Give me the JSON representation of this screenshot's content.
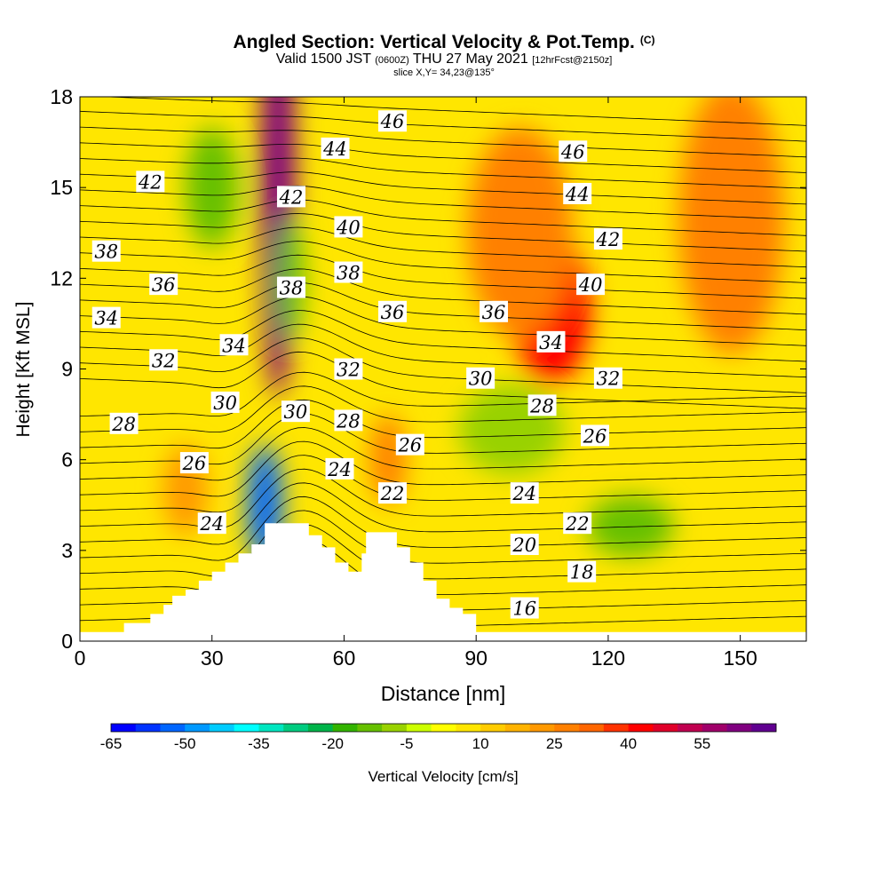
{
  "title": {
    "main": "Angled Section: Vertical Velocity & Pot.Temp.",
    "main_unit": "(C)",
    "valid_prefix": "Valid 1500 JST",
    "valid_utc": "(0600Z)",
    "valid_date": "THU 27 May 2021",
    "forecast": "[12hrFcst@2150z]",
    "slice": "slice X,Y= 34,23@135°"
  },
  "chart_data": {
    "type": "heatmap",
    "xlabel": "Distance [nm]",
    "ylabel": "Height [Kft MSL]",
    "xlim": [
      0,
      165
    ],
    "ylim": [
      0,
      18
    ],
    "xticks": [
      0,
      30,
      60,
      90,
      120,
      150
    ],
    "yticks": [
      0,
      3,
      6,
      9,
      12,
      15,
      18
    ],
    "colorbar": {
      "label": "Vertical Velocity [cm/s]",
      "tick_labels": [
        -65,
        -50,
        -35,
        -20,
        -5,
        10,
        25,
        40,
        55
      ],
      "colors": [
        "#0000ff",
        "#0033ff",
        "#0066ff",
        "#0099ff",
        "#00ccff",
        "#00ffff",
        "#00e6c0",
        "#00cc80",
        "#00b44a",
        "#33b400",
        "#66c000",
        "#99d200",
        "#ccff00",
        "#ffff00",
        "#ffe600",
        "#ffcc00",
        "#ffb300",
        "#ff9900",
        "#ff8000",
        "#ff6600",
        "#ff3300",
        "#ff0000",
        "#e0002a",
        "#c00050",
        "#a0006a",
        "#800080",
        "#600090"
      ]
    },
    "terrain_profile": [
      [
        0,
        0.3
      ],
      [
        10,
        0.3
      ],
      [
        10,
        0.6
      ],
      [
        16,
        0.6
      ],
      [
        16,
        0.9
      ],
      [
        19,
        0.9
      ],
      [
        19,
        1.2
      ],
      [
        21,
        1.2
      ],
      [
        21,
        1.5
      ],
      [
        24,
        1.5
      ],
      [
        24,
        1.7
      ],
      [
        27,
        1.7
      ],
      [
        27,
        2.0
      ],
      [
        30,
        2.0
      ],
      [
        30,
        2.3
      ],
      [
        33,
        2.3
      ],
      [
        33,
        2.6
      ],
      [
        36,
        2.6
      ],
      [
        36,
        2.9
      ],
      [
        39,
        2.9
      ],
      [
        39,
        3.2
      ],
      [
        42,
        3.2
      ],
      [
        42,
        3.9
      ],
      [
        52,
        3.9
      ],
      [
        52,
        3.5
      ],
      [
        55,
        3.5
      ],
      [
        55,
        3.1
      ],
      [
        58,
        3.1
      ],
      [
        58,
        2.6
      ],
      [
        61,
        2.6
      ],
      [
        61,
        2.3
      ],
      [
        64,
        2.3
      ],
      [
        64,
        2.9
      ],
      [
        65,
        2.9
      ],
      [
        65,
        3.6
      ],
      [
        72,
        3.6
      ],
      [
        72,
        3.1
      ],
      [
        75,
        3.1
      ],
      [
        75,
        2.6
      ],
      [
        78,
        2.6
      ],
      [
        78,
        2.0
      ],
      [
        81,
        2.0
      ],
      [
        81,
        1.4
      ],
      [
        84,
        1.4
      ],
      [
        84,
        1.1
      ],
      [
        87,
        1.1
      ],
      [
        87,
        0.9
      ],
      [
        90,
        0.9
      ],
      [
        90,
        0.3
      ],
      [
        165,
        0.3
      ]
    ],
    "vertical_velocity_features": [
      {
        "x": 45,
        "y": 15,
        "w": 4,
        "h": 14,
        "value": 58
      },
      {
        "x": 42,
        "y": 4.5,
        "w": 4,
        "h": 4,
        "value": -55
      },
      {
        "x": 107,
        "y": 11,
        "w": 9,
        "h": 5,
        "value": 40
      },
      {
        "x": 100,
        "y": 13.5,
        "w": 12,
        "h": 7,
        "value": 25
      },
      {
        "x": 148,
        "y": 14,
        "w": 12,
        "h": 9,
        "value": 25
      },
      {
        "x": 98,
        "y": 7,
        "w": 12,
        "h": 3,
        "value": -10
      },
      {
        "x": 125,
        "y": 3.8,
        "w": 10,
        "h": 2,
        "value": -15
      },
      {
        "x": 48,
        "y": 12,
        "w": 3,
        "h": 4,
        "value": -15
      },
      {
        "x": 70,
        "y": 6,
        "w": 4,
        "h": 3,
        "value": 25
      },
      {
        "x": 24,
        "y": 5,
        "w": 5,
        "h": 3,
        "value": 20
      },
      {
        "x": 30,
        "y": 15,
        "w": 6,
        "h": 4,
        "value": -15
      }
    ],
    "contour_labels": [
      {
        "text": "46",
        "x": 71,
        "y": 17.2
      },
      {
        "text": "44",
        "x": 58,
        "y": 16.3
      },
      {
        "text": "42",
        "x": 16,
        "y": 15.2
      },
      {
        "text": "42",
        "x": 48,
        "y": 14.7
      },
      {
        "text": "46",
        "x": 112,
        "y": 16.2
      },
      {
        "text": "44",
        "x": 113,
        "y": 14.8
      },
      {
        "text": "42",
        "x": 120,
        "y": 13.3
      },
      {
        "text": "40",
        "x": 61,
        "y": 13.7
      },
      {
        "text": "40",
        "x": 116,
        "y": 11.8
      },
      {
        "text": "38",
        "x": 6,
        "y": 12.9
      },
      {
        "text": "38",
        "x": 48,
        "y": 11.7
      },
      {
        "text": "38",
        "x": 61,
        "y": 12.2
      },
      {
        "text": "36",
        "x": 19,
        "y": 11.8
      },
      {
        "text": "36",
        "x": 71,
        "y": 10.9
      },
      {
        "text": "36",
        "x": 94,
        "y": 10.9
      },
      {
        "text": "34",
        "x": 6,
        "y": 10.7
      },
      {
        "text": "34",
        "x": 35,
        "y": 9.8
      },
      {
        "text": "34",
        "x": 107,
        "y": 9.9
      },
      {
        "text": "32",
        "x": 19,
        "y": 9.3
      },
      {
        "text": "32",
        "x": 61,
        "y": 9.0
      },
      {
        "text": "32",
        "x": 120,
        "y": 8.7
      },
      {
        "text": "30",
        "x": 33,
        "y": 7.9
      },
      {
        "text": "30",
        "x": 49,
        "y": 7.6
      },
      {
        "text": "30",
        "x": 91,
        "y": 8.7
      },
      {
        "text": "28",
        "x": 10,
        "y": 7.2
      },
      {
        "text": "28",
        "x": 61,
        "y": 7.3
      },
      {
        "text": "28",
        "x": 105,
        "y": 7.8
      },
      {
        "text": "26",
        "x": 26,
        "y": 5.9
      },
      {
        "text": "26",
        "x": 75,
        "y": 6.5
      },
      {
        "text": "26",
        "x": 117,
        "y": 6.8
      },
      {
        "text": "24",
        "x": 59,
        "y": 5.7
      },
      {
        "text": "24",
        "x": 101,
        "y": 4.9
      },
      {
        "text": "24",
        "x": 30,
        "y": 3.9
      },
      {
        "text": "22",
        "x": 71,
        "y": 4.9
      },
      {
        "text": "22",
        "x": 113,
        "y": 3.9
      },
      {
        "text": "20",
        "x": 101,
        "y": 3.2
      },
      {
        "text": "18",
        "x": 114,
        "y": 2.3
      },
      {
        "text": "16",
        "x": 101,
        "y": 1.1
      }
    ]
  }
}
